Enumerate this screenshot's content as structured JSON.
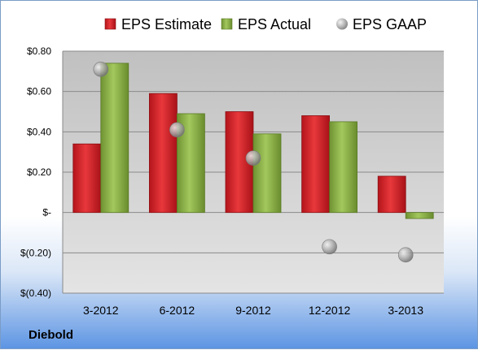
{
  "company": "Diebold",
  "chart_data": {
    "type": "bar",
    "categories": [
      "3-2012",
      "6-2012",
      "9-2012",
      "12-2012",
      "3-2013"
    ],
    "series": [
      {
        "name": "EPS Estimate",
        "kind": "bar",
        "color": "#d9262b",
        "values": [
          0.34,
          0.59,
          0.5,
          0.48,
          0.18
        ]
      },
      {
        "name": "EPS Actual",
        "kind": "bar",
        "color": "#8cb045",
        "values": [
          0.74,
          0.49,
          0.39,
          0.45,
          -0.03
        ]
      },
      {
        "name": "EPS GAAP",
        "kind": "point",
        "color": "#a0a0a0",
        "values": [
          0.71,
          0.41,
          0.27,
          -0.17,
          -0.21
        ]
      }
    ],
    "yticks": [
      {
        "value": 0.8,
        "label": "$0.80"
      },
      {
        "value": 0.6,
        "label": "$0.60"
      },
      {
        "value": 0.4,
        "label": "$0.40"
      },
      {
        "value": 0.2,
        "label": "$0.20"
      },
      {
        "value": 0,
        "label": "$-"
      },
      {
        "value": -0.2,
        "label": "$(0.20)"
      },
      {
        "value": -0.4,
        "label": "$(0.40)"
      }
    ],
    "ylim": [
      -0.4,
      0.8
    ],
    "grid": true,
    "legend_position": "top",
    "title": "",
    "xlabel": "",
    "ylabel": ""
  }
}
